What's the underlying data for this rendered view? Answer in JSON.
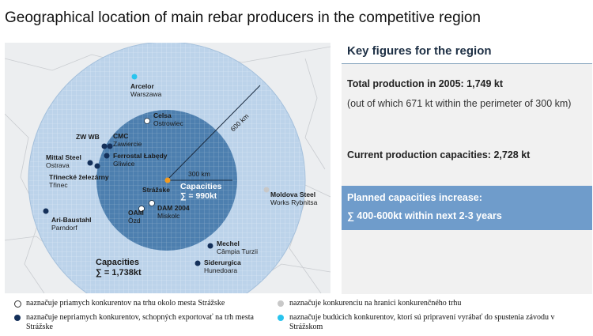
{
  "title": "Geographical location of main rebar producers in the competitive region",
  "map": {
    "radius_labels": {
      "outer": "600 km",
      "inner": "300 km"
    },
    "producers": [
      {
        "name": "Arcelor",
        "city": "Warszawa",
        "marker": "future"
      },
      {
        "name": "Celsa",
        "city": "Ostrowiec",
        "marker": "direct"
      },
      {
        "name": "ZW WB",
        "city": "",
        "marker": "indirect"
      },
      {
        "name": "CMC",
        "city": "Zawiercie",
        "marker": "indirect"
      },
      {
        "name": "Ferrostal Łabędy",
        "city": "Gliwice",
        "marker": "indirect"
      },
      {
        "name": "Mittal Steel",
        "city": "Ostrava",
        "marker": "indirect"
      },
      {
        "name": "Třinecké železárny",
        "city": "Třinec",
        "marker": "indirect"
      },
      {
        "name": "Ari-Baustahl",
        "city": "Parndorf",
        "marker": "indirect"
      },
      {
        "name": "DAM 2004",
        "city": "Miskolc",
        "marker": "direct"
      },
      {
        "name": "OAM",
        "city": "Ózd",
        "marker": "direct"
      },
      {
        "name": "Moldova Steel",
        "city": "Works Rybnitsa",
        "marker": "border"
      },
      {
        "name": "Mechel",
        "city": "Câmpia Turzii",
        "marker": "indirect"
      },
      {
        "name": "Siderurgica",
        "city": "Hunedoara",
        "marker": "indirect"
      }
    ],
    "center": {
      "name": "Strážske"
    },
    "inner_capacity": {
      "label": "Capacities",
      "value": "∑ = 990kt"
    },
    "outer_capacity": {
      "label": "Capacities",
      "value": "∑  = 1,738kt"
    }
  },
  "key_figures": {
    "heading": "Key figures for the region",
    "total_production": "Total production in 2005: 1,749 kt",
    "total_note": "(out of which 671 kt within the perimeter of 300 km)",
    "current_capacities": "Current production capacities:  2,728 kt",
    "planned_heading": "Planned capacities increase:",
    "planned_value": "∑ 400-600kt within next 2-3 years"
  },
  "legend": {
    "direct": "naznačuje priamych konkurentov  na trhu okolo mesta Strážske",
    "indirect": "naznačuje nepriamych konkurentov, schopných exportovať na trh mesta Strážske",
    "border": "naznačuje konkurenciu na hranici konkurenčného trhu",
    "future": "naznačuje budúcich konkurentov, ktorí sú pripravení vyrábať do spustenia závodu v Strážskom"
  },
  "colors": {
    "outer_circle": "#bcd3ea",
    "inner_circle": "#4d7faf",
    "indirect_marker": "#14305a",
    "future_marker": "#29c4ee",
    "border_marker": "#c8c8c8",
    "center_marker": "#f39a1e",
    "planned_box": "#6f9ccb"
  }
}
